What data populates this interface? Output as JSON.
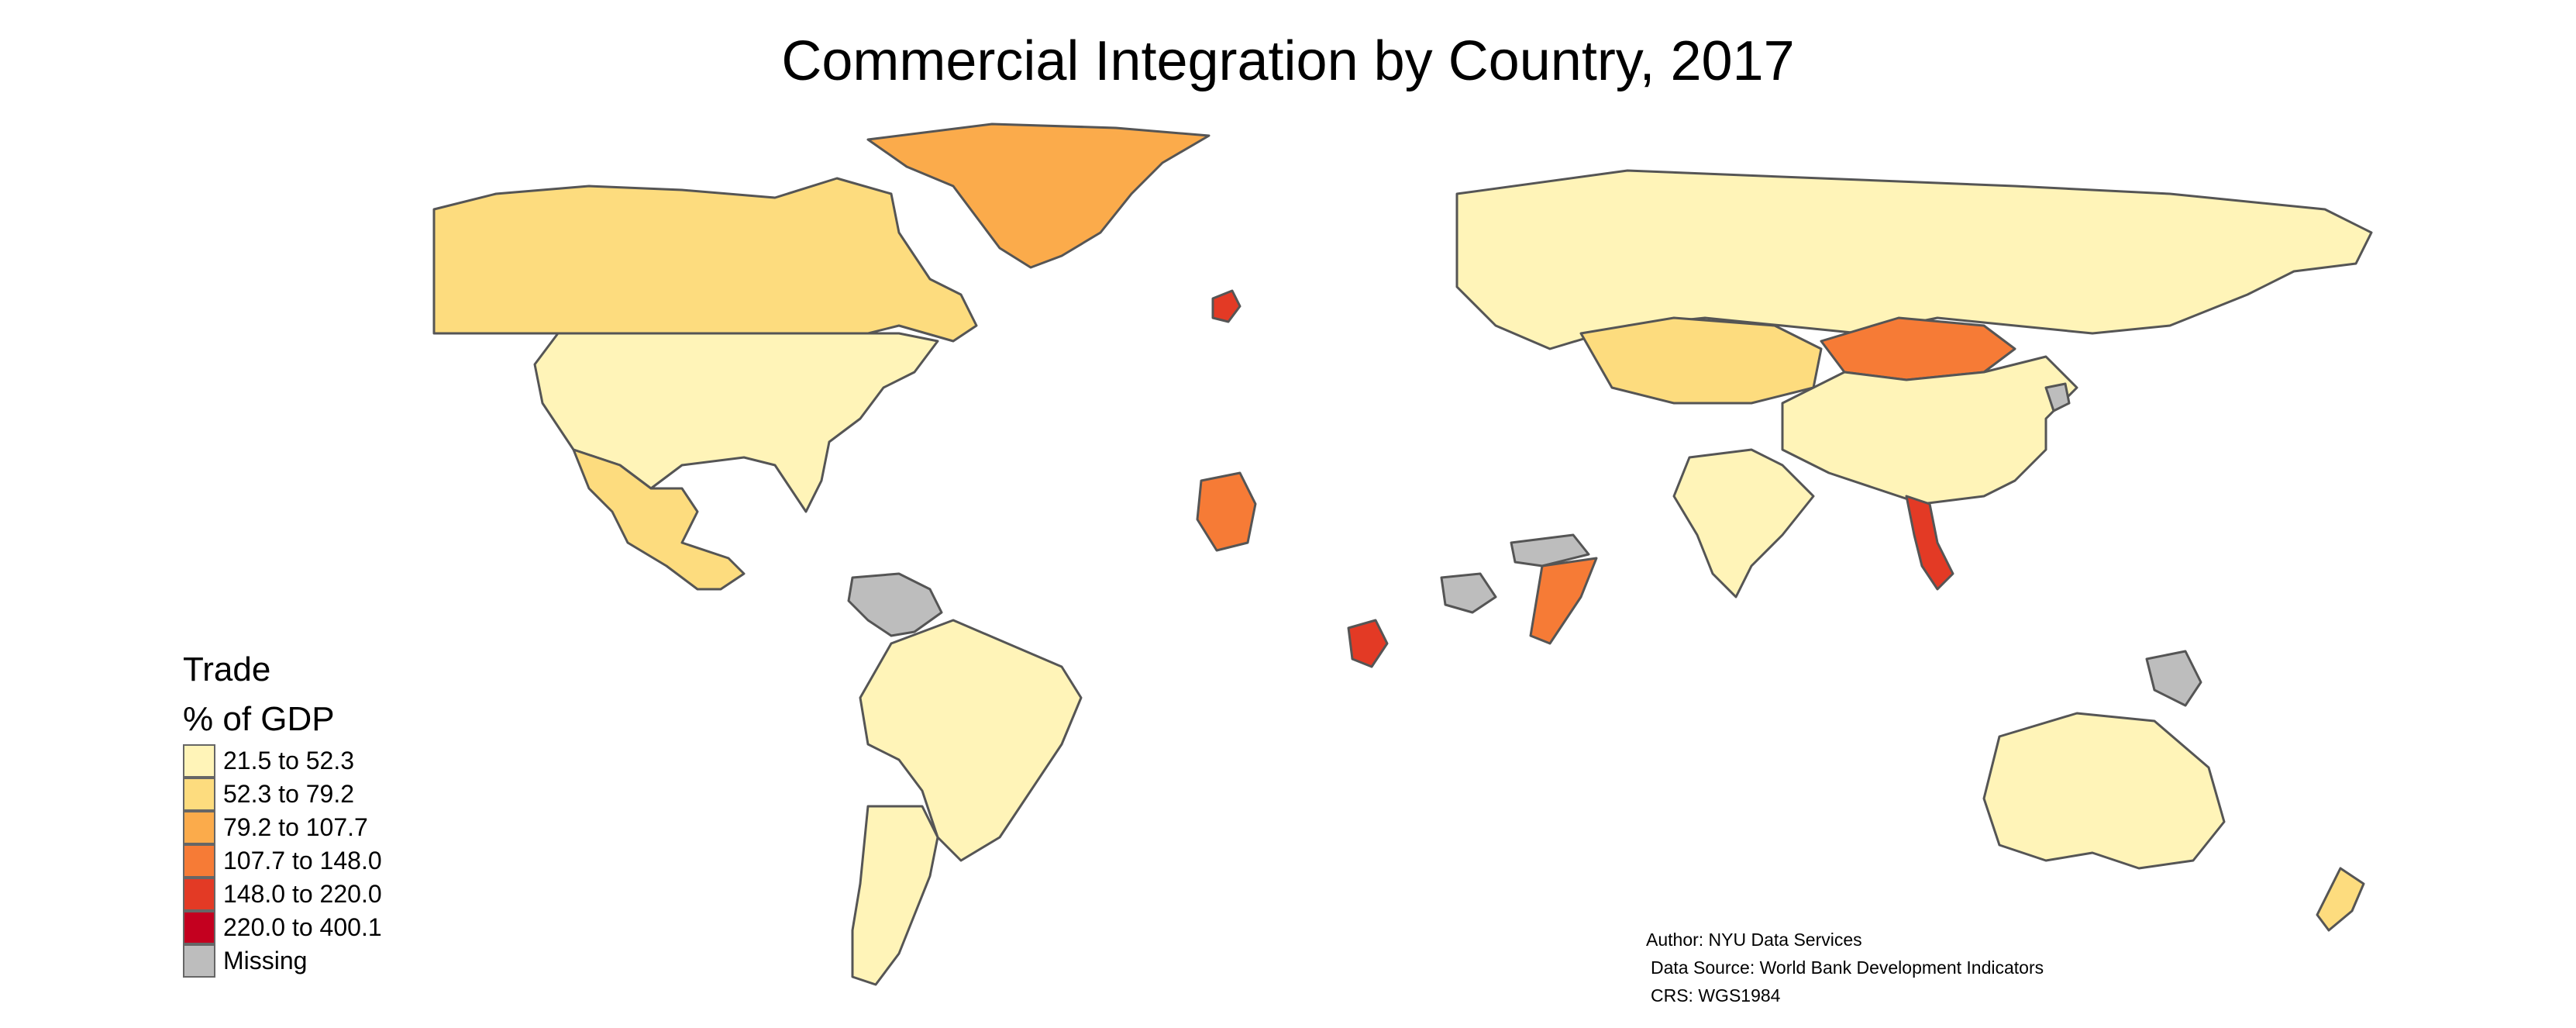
{
  "title": "Commercial Integration by Country, 2017",
  "legend": {
    "title_line1": "Trade",
    "title_line2": "% of GDP",
    "classes": [
      {
        "label": "21.5 to 52.3",
        "color": "#fff4b8"
      },
      {
        "label": "52.3 to 79.2",
        "color": "#fddc7e"
      },
      {
        "label": "79.2 to 107.7",
        "color": "#fbab4b"
      },
      {
        "label": "107.7 to 148.0",
        "color": "#f67b36"
      },
      {
        "label": "148.0 to 220.0",
        "color": "#e33a25"
      },
      {
        "label": "220.0 to 400.1",
        "color": "#c4001f"
      },
      {
        "label": "Missing",
        "color": "#bdbdbd"
      }
    ]
  },
  "credits": {
    "author": "Author: NYU Data Services",
    "source": "Data Source: World Bank Development Indicators",
    "crs": "CRS: WGS1984"
  },
  "map": {
    "stroke_color": "#555555",
    "regions": [
      {
        "name": "canada",
        "class": 1
      },
      {
        "name": "united-states",
        "class": 0
      },
      {
        "name": "mexico",
        "class": 1
      },
      {
        "name": "greenland",
        "class": 2
      },
      {
        "name": "brazil",
        "class": 0
      },
      {
        "name": "argentina",
        "class": 0
      },
      {
        "name": "venezuela",
        "class": 6
      },
      {
        "name": "australia",
        "class": 0
      },
      {
        "name": "new-zealand",
        "class": 1
      },
      {
        "name": "russia",
        "class": 0
      },
      {
        "name": "china",
        "class": 0
      },
      {
        "name": "mongolia",
        "class": 3
      },
      {
        "name": "india",
        "class": 0
      },
      {
        "name": "kazakhstan",
        "class": 1
      },
      {
        "name": "vietnam",
        "class": 4
      },
      {
        "name": "ireland",
        "class": 4
      },
      {
        "name": "south-sudan",
        "class": 6
      },
      {
        "name": "papua-new-guinea",
        "class": 6
      },
      {
        "name": "north-korea",
        "class": 6
      },
      {
        "name": "republic-of-congo",
        "class": 4
      },
      {
        "name": "mauritania",
        "class": 3
      },
      {
        "name": "somalia",
        "class": 3
      },
      {
        "name": "yemen",
        "class": 6
      }
    ]
  }
}
